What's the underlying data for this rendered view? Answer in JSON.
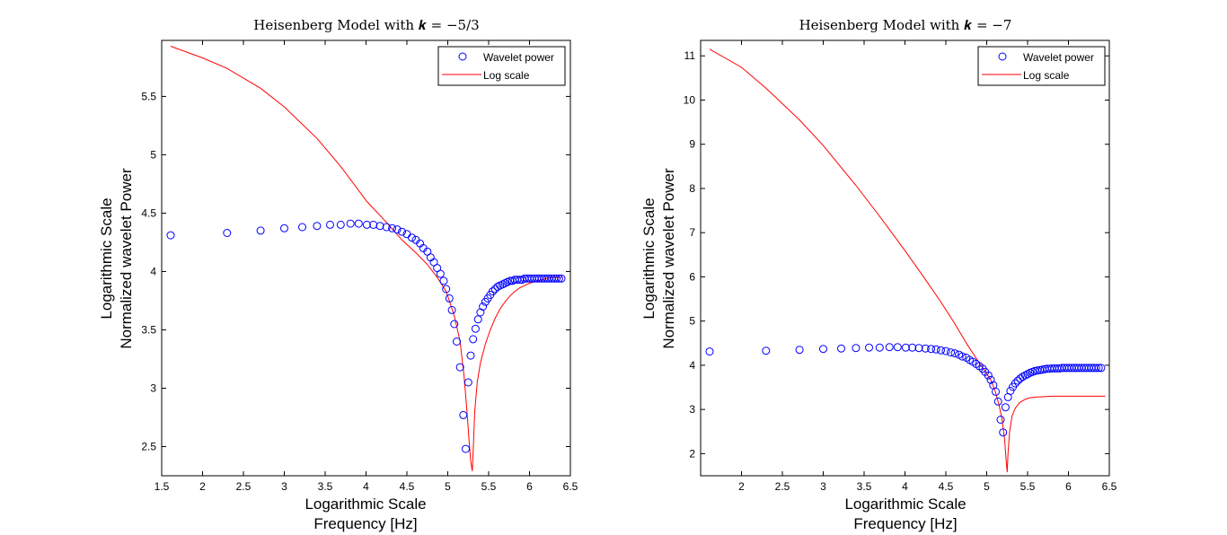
{
  "chart_data": [
    {
      "type": "scatter+line",
      "title": "Heisenberg Model with 𝒌 = −5/3",
      "xlabel_lines": [
        "Logarithmic Scale",
        "Frequency [Hz]"
      ],
      "ylabel_lines": [
        "Logarithmic Scale",
        "Normalized wavelet Power"
      ],
      "xlim": [
        1.5,
        6.5
      ],
      "ylim": [
        2.25,
        5.98
      ],
      "xticks": [
        "1.5",
        "2",
        "2.5",
        "3",
        "3.5",
        "4",
        "4.5",
        "5",
        "5.5",
        "6",
        "6.5"
      ],
      "yticks": [
        "2.5",
        "3",
        "3.5",
        "4",
        "4.5",
        "5",
        "5.5"
      ],
      "legend": {
        "position": "top-right",
        "entries": [
          "Wavelet power",
          "Log scale"
        ]
      },
      "series": [
        {
          "name": "Wavelet power",
          "kind": "markers",
          "marker": "circle",
          "color": "#0000ff",
          "x": [
            1.61,
            2.3,
            2.71,
            3.0,
            3.22,
            3.4,
            3.56,
            3.69,
            3.81,
            3.91,
            4.01,
            4.09,
            4.17,
            4.25,
            4.32,
            4.38,
            4.44,
            4.5,
            4.56,
            4.61,
            4.66,
            4.7,
            4.75,
            4.79,
            4.83,
            4.87,
            4.91,
            4.95,
            4.98,
            5.02,
            5.05,
            5.08,
            5.11,
            5.15,
            5.19,
            5.22,
            5.25,
            5.28,
            5.31,
            5.34,
            5.37,
            5.4,
            5.43,
            5.46,
            5.49,
            5.52,
            5.55,
            5.58,
            5.61,
            5.64,
            5.67,
            5.7,
            5.73,
            5.76,
            5.79,
            5.82,
            5.85,
            5.88,
            5.91,
            5.94,
            5.97,
            6.0,
            6.03,
            6.06,
            6.09,
            6.12,
            6.15,
            6.18,
            6.21,
            6.24,
            6.27,
            6.3,
            6.33,
            6.36,
            6.39
          ],
          "y": [
            4.31,
            4.33,
            4.35,
            4.37,
            4.38,
            4.39,
            4.4,
            4.4,
            4.41,
            4.41,
            4.4,
            4.4,
            4.39,
            4.38,
            4.37,
            4.36,
            4.34,
            4.32,
            4.29,
            4.27,
            4.24,
            4.2,
            4.17,
            4.12,
            4.08,
            4.03,
            3.98,
            3.92,
            3.85,
            3.77,
            3.67,
            3.55,
            3.4,
            3.18,
            2.77,
            2.48,
            3.05,
            3.28,
            3.42,
            3.51,
            3.59,
            3.65,
            3.7,
            3.74,
            3.77,
            3.8,
            3.83,
            3.85,
            3.87,
            3.88,
            3.89,
            3.9,
            3.91,
            3.92,
            3.92,
            3.93,
            3.93,
            3.93,
            3.93,
            3.94,
            3.94,
            3.94,
            3.94,
            3.94,
            3.94,
            3.94,
            3.94,
            3.94,
            3.94,
            3.94,
            3.94,
            3.94,
            3.94,
            3.94,
            3.94
          ]
        },
        {
          "name": "Log scale",
          "kind": "line",
          "color": "#ff0000",
          "x": [
            1.61,
            2.0,
            2.3,
            2.71,
            3.0,
            3.4,
            3.69,
            4.01,
            4.25,
            4.44,
            4.61,
            4.75,
            4.87,
            4.98,
            5.08,
            5.15,
            5.2,
            5.24,
            5.26,
            5.28,
            5.3,
            5.31,
            5.33,
            5.36,
            5.4,
            5.46,
            5.52,
            5.58,
            5.64,
            5.7,
            5.76,
            5.82,
            5.88,
            5.94,
            6.0,
            6.1,
            6.2,
            6.3,
            6.4
          ],
          "y": [
            5.93,
            5.83,
            5.74,
            5.57,
            5.41,
            5.14,
            4.9,
            4.6,
            4.42,
            4.27,
            4.16,
            4.06,
            3.95,
            3.83,
            3.62,
            3.4,
            3.1,
            2.76,
            2.55,
            2.38,
            2.29,
            2.44,
            2.8,
            3.05,
            3.22,
            3.38,
            3.5,
            3.6,
            3.68,
            3.74,
            3.79,
            3.83,
            3.86,
            3.88,
            3.9,
            3.92,
            3.94,
            3.95,
            3.95
          ]
        }
      ]
    },
    {
      "type": "scatter+line",
      "title": "Heisenberg Model with 𝒌 = −7",
      "xlabel_lines": [
        "Logarithmic Scale",
        "Frequency [Hz]"
      ],
      "ylabel_lines": [
        "Logarithmic Scale",
        "Normalized wavelet Power"
      ],
      "xlim": [
        1.5,
        6.5
      ],
      "ylim": [
        1.5,
        11.35
      ],
      "xticks": [
        "2",
        "2.5",
        "3",
        "3.5",
        "4",
        "4.5",
        "5",
        "5.5",
        "6",
        "6.5"
      ],
      "yticks": [
        "2",
        "3",
        "4",
        "5",
        "6",
        "7",
        "8",
        "9",
        "10",
        "11"
      ],
      "legend": {
        "position": "top-right",
        "entries": [
          "Wavelet power",
          "Log scale"
        ]
      },
      "series": [
        {
          "name": "Wavelet power",
          "kind": "markers",
          "marker": "circle",
          "color": "#0000ff",
          "x": [
            1.61,
            2.3,
            2.71,
            3.0,
            3.22,
            3.4,
            3.56,
            3.69,
            3.81,
            3.91,
            4.01,
            4.09,
            4.17,
            4.25,
            4.32,
            4.38,
            4.44,
            4.5,
            4.56,
            4.61,
            4.66,
            4.7,
            4.75,
            4.79,
            4.83,
            4.87,
            4.91,
            4.95,
            4.98,
            5.02,
            5.05,
            5.08,
            5.11,
            5.14,
            5.17,
            5.2,
            5.23,
            5.26,
            5.29,
            5.32,
            5.35,
            5.38,
            5.41,
            5.44,
            5.47,
            5.5,
            5.53,
            5.56,
            5.59,
            5.62,
            5.65,
            5.68,
            5.71,
            5.74,
            5.77,
            5.8,
            5.83,
            5.86,
            5.89,
            5.92,
            5.95,
            5.98,
            6.01,
            6.04,
            6.07,
            6.1,
            6.13,
            6.16,
            6.19,
            6.22,
            6.25,
            6.28,
            6.31,
            6.34,
            6.37,
            6.4
          ],
          "y": [
            4.31,
            4.33,
            4.35,
            4.37,
            4.38,
            4.39,
            4.4,
            4.4,
            4.41,
            4.41,
            4.4,
            4.4,
            4.39,
            4.38,
            4.37,
            4.36,
            4.34,
            4.32,
            4.29,
            4.27,
            4.24,
            4.2,
            4.17,
            4.12,
            4.08,
            4.03,
            3.98,
            3.92,
            3.85,
            3.77,
            3.67,
            3.55,
            3.4,
            3.18,
            2.77,
            2.48,
            3.05,
            3.28,
            3.42,
            3.51,
            3.59,
            3.65,
            3.7,
            3.74,
            3.77,
            3.8,
            3.83,
            3.85,
            3.87,
            3.88,
            3.89,
            3.9,
            3.91,
            3.92,
            3.92,
            3.93,
            3.93,
            3.93,
            3.93,
            3.94,
            3.94,
            3.94,
            3.94,
            3.94,
            3.94,
            3.94,
            3.94,
            3.94,
            3.94,
            3.94,
            3.94,
            3.94,
            3.94,
            3.94,
            3.94,
            3.94
          ]
        },
        {
          "name": "Log scale",
          "kind": "line",
          "color": "#ff0000",
          "x": [
            1.61,
            2.0,
            2.3,
            2.71,
            3.0,
            3.4,
            3.69,
            4.01,
            4.25,
            4.44,
            4.61,
            4.75,
            4.87,
            4.98,
            5.05,
            5.1,
            5.15,
            5.19,
            5.22,
            5.24,
            5.25,
            5.26,
            5.28,
            5.31,
            5.35,
            5.4,
            5.46,
            5.52,
            5.6,
            5.7,
            5.8,
            5.95,
            6.1,
            6.3,
            6.45
          ],
          "y": [
            11.15,
            10.74,
            10.27,
            9.55,
            8.97,
            8.07,
            7.37,
            6.57,
            5.94,
            5.43,
            4.94,
            4.5,
            4.16,
            3.86,
            3.67,
            3.44,
            3.1,
            2.75,
            2.3,
            1.8,
            1.58,
            2.0,
            2.5,
            2.85,
            3.03,
            3.15,
            3.22,
            3.26,
            3.28,
            3.29,
            3.3,
            3.3,
            3.3,
            3.3,
            3.3
          ]
        }
      ]
    }
  ]
}
